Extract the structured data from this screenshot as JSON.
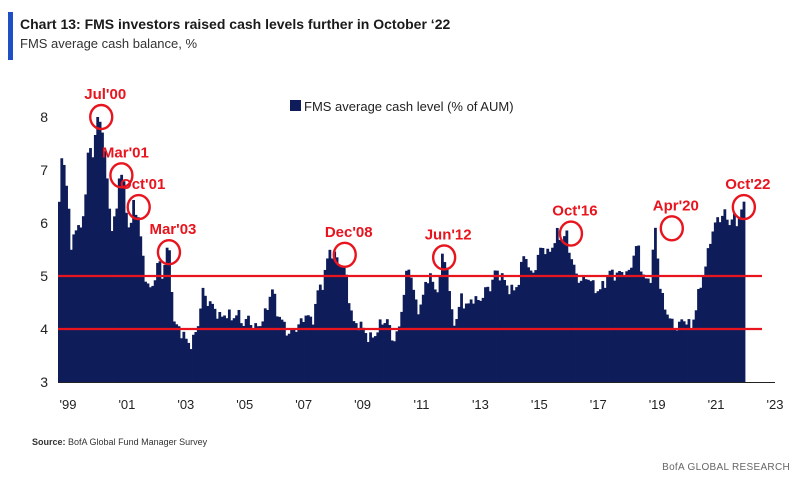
{
  "title": "Chart 13: FMS investors raised cash levels further in October ‘22",
  "subtitle": "FMS average cash balance, %",
  "source_label": "Source:",
  "source_text": "BofA Global Fund Manager Survey",
  "footer": "BofA GLOBAL RESEARCH",
  "colors": {
    "bar": "#0f1c5a",
    "reference_line": "#e8141e",
    "annotation": "#e8141e",
    "accent": "#1f4fc4"
  },
  "chart_data": {
    "type": "bar",
    "legend": "FMS average cash level (% of AUM)",
    "legend_position": "top-center",
    "ylim": [
      3,
      8
    ],
    "yticks": [
      3,
      4,
      5,
      6,
      7,
      8
    ],
    "xlim": [
      1999.0,
      2022.84
    ],
    "xtick_labels": [
      {
        "x": 1999,
        "label": "'99"
      },
      {
        "x": 2001,
        "label": "'01"
      },
      {
        "x": 2003,
        "label": "'03"
      },
      {
        "x": 2005,
        "label": "'05"
      },
      {
        "x": 2007,
        "label": "'07"
      },
      {
        "x": 2009,
        "label": "'09"
      },
      {
        "x": 2011,
        "label": "'11"
      },
      {
        "x": 2013,
        "label": "'13"
      },
      {
        "x": 2015,
        "label": "'15"
      },
      {
        "x": 2017,
        "label": "'17"
      },
      {
        "x": 2019,
        "label": "'19"
      },
      {
        "x": 2021,
        "label": "'21"
      },
      {
        "x": 2023,
        "label": "'23"
      }
    ],
    "reference_lines": [
      5,
      4
    ],
    "grid": false,
    "series_points": [
      [
        1999.0,
        6.4
      ],
      [
        1999.1,
        7.3
      ],
      [
        1999.2,
        7.0
      ],
      [
        1999.3,
        6.6
      ],
      [
        1999.4,
        5.4
      ],
      [
        1999.55,
        6.0
      ],
      [
        1999.7,
        5.8
      ],
      [
        1999.85,
        6.2
      ],
      [
        1999.95,
        6.8
      ],
      [
        2000.05,
        7.6
      ],
      [
        2000.15,
        7.2
      ],
      [
        2000.3,
        7.9
      ],
      [
        2000.45,
        8.0
      ],
      [
        2000.55,
        7.5
      ],
      [
        2000.7,
        6.6
      ],
      [
        2000.85,
        5.8
      ],
      [
        2001.0,
        6.3
      ],
      [
        2001.1,
        7.0
      ],
      [
        2001.2,
        6.9
      ],
      [
        2001.35,
        6.2
      ],
      [
        2001.45,
        5.8
      ],
      [
        2001.6,
        6.4
      ],
      [
        2001.75,
        6.1
      ],
      [
        2001.9,
        5.4
      ],
      [
        2002.0,
        5.0
      ],
      [
        2002.15,
        4.7
      ],
      [
        2002.3,
        4.9
      ],
      [
        2002.45,
        5.3
      ],
      [
        2002.6,
        5.0
      ],
      [
        2002.75,
        5.5
      ],
      [
        2002.85,
        5.4
      ],
      [
        2003.0,
        4.1
      ],
      [
        2003.2,
        4.0
      ],
      [
        2003.4,
        3.8
      ],
      [
        2003.6,
        3.7
      ],
      [
        2003.8,
        4.0
      ],
      [
        2004.0,
        4.7
      ],
      [
        2004.2,
        4.5
      ],
      [
        2004.4,
        4.4
      ],
      [
        2004.6,
        4.2
      ],
      [
        2004.8,
        4.3
      ],
      [
        2005.0,
        4.2
      ],
      [
        2005.2,
        4.3
      ],
      [
        2005.4,
        4.1
      ],
      [
        2005.6,
        4.2
      ],
      [
        2005.8,
        4.0
      ],
      [
        2006.0,
        4.1
      ],
      [
        2006.2,
        4.3
      ],
      [
        2006.4,
        4.8
      ],
      [
        2006.6,
        4.3
      ],
      [
        2006.8,
        4.1
      ],
      [
        2007.0,
        3.9
      ],
      [
        2007.2,
        4.0
      ],
      [
        2007.4,
        4.1
      ],
      [
        2007.6,
        4.3
      ],
      [
        2007.8,
        4.1
      ],
      [
        2008.0,
        4.7
      ],
      [
        2008.2,
        4.9
      ],
      [
        2008.4,
        5.5
      ],
      [
        2008.55,
        5.4
      ],
      [
        2008.7,
        5.3
      ],
      [
        2008.85,
        5.2
      ],
      [
        2009.0,
        5.0
      ],
      [
        2009.1,
        4.5
      ],
      [
        2009.25,
        4.1
      ],
      [
        2009.4,
        4.1
      ],
      [
        2009.6,
        4.0
      ],
      [
        2009.8,
        3.8
      ],
      [
        2010.0,
        3.9
      ],
      [
        2010.2,
        4.1
      ],
      [
        2010.4,
        4.2
      ],
      [
        2010.6,
        3.8
      ],
      [
        2010.8,
        3.9
      ],
      [
        2011.0,
        4.7
      ],
      [
        2011.15,
        5.2
      ],
      [
        2011.3,
        4.9
      ],
      [
        2011.45,
        4.3
      ],
      [
        2011.6,
        4.5
      ],
      [
        2011.75,
        4.8
      ],
      [
        2011.9,
        5.1
      ],
      [
        2012.05,
        4.7
      ],
      [
        2012.2,
        4.8
      ],
      [
        2012.35,
        5.4
      ],
      [
        2012.5,
        5.2
      ],
      [
        2012.65,
        4.3
      ],
      [
        2012.8,
        4.1
      ],
      [
        2013.0,
        4.6
      ],
      [
        2013.2,
        4.4
      ],
      [
        2013.4,
        4.6
      ],
      [
        2013.6,
        4.5
      ],
      [
        2013.8,
        4.7
      ],
      [
        2014.0,
        4.8
      ],
      [
        2014.2,
        5.1
      ],
      [
        2014.4,
        5.0
      ],
      [
        2014.6,
        4.8
      ],
      [
        2014.8,
        4.7
      ],
      [
        2015.0,
        4.9
      ],
      [
        2015.2,
        5.5
      ],
      [
        2015.4,
        5.0
      ],
      [
        2015.6,
        5.2
      ],
      [
        2015.8,
        5.6
      ],
      [
        2016.0,
        5.4
      ],
      [
        2016.2,
        5.6
      ],
      [
        2016.35,
        5.8
      ],
      [
        2016.5,
        5.7
      ],
      [
        2016.65,
        5.8
      ],
      [
        2016.8,
        5.4
      ],
      [
        2017.0,
        5.0
      ],
      [
        2017.2,
        4.9
      ],
      [
        2017.4,
        5.0
      ],
      [
        2017.6,
        4.8
      ],
      [
        2017.8,
        4.7
      ],
      [
        2018.0,
        4.9
      ],
      [
        2018.2,
        5.1
      ],
      [
        2018.4,
        5.0
      ],
      [
        2018.6,
        5.1
      ],
      [
        2018.8,
        5.0
      ],
      [
        2019.0,
        5.4
      ],
      [
        2019.15,
        5.6
      ],
      [
        2019.3,
        5.0
      ],
      [
        2019.45,
        4.9
      ],
      [
        2019.6,
        5.0
      ],
      [
        2019.75,
        5.9
      ],
      [
        2019.9,
        4.9
      ],
      [
        2020.05,
        4.4
      ],
      [
        2020.2,
        4.3
      ],
      [
        2020.4,
        4.0
      ],
      [
        2020.6,
        4.1
      ],
      [
        2020.8,
        4.2
      ],
      [
        2021.0,
        4.0
      ],
      [
        2021.2,
        4.5
      ],
      [
        2021.4,
        5.0
      ],
      [
        2021.55,
        5.3
      ],
      [
        2021.7,
        5.8
      ],
      [
        2021.85,
        6.0
      ],
      [
        2022.0,
        6.1
      ],
      [
        2022.15,
        6.2
      ],
      [
        2022.3,
        6.0
      ],
      [
        2022.45,
        6.1
      ],
      [
        2022.6,
        6.0
      ],
      [
        2022.7,
        6.2
      ],
      [
        2022.8,
        6.3
      ]
    ],
    "annotations": [
      {
        "label": "Jul'00",
        "x": 2000.5,
        "y": 8.0
      },
      {
        "label": "Mar'01",
        "x": 2001.2,
        "y": 6.9
      },
      {
        "label": "Oct'01",
        "x": 2001.8,
        "y": 6.3
      },
      {
        "label": "Mar'03",
        "x": 2002.85,
        "y": 5.45
      },
      {
        "label": "Dec'08",
        "x": 2008.95,
        "y": 5.4
      },
      {
        "label": "Jun'12",
        "x": 2012.4,
        "y": 5.35
      },
      {
        "label": "Oct'16",
        "x": 2016.8,
        "y": 5.8
      },
      {
        "label": "Apr'20",
        "x": 2020.3,
        "y": 5.9
      },
      {
        "label": "Oct'22",
        "x": 2022.8,
        "y": 6.3
      }
    ]
  }
}
